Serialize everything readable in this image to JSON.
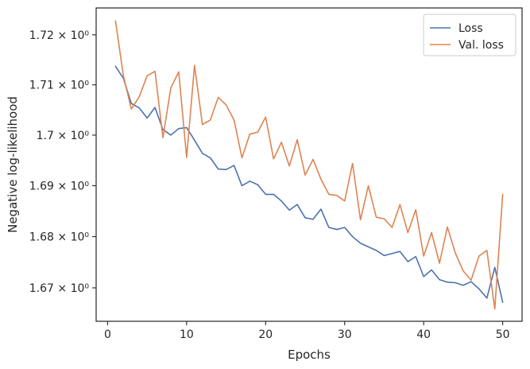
{
  "chart_data": {
    "type": "line",
    "title": "",
    "xlabel": "Epochs",
    "ylabel": "Negative log-likelihood",
    "x": [
      1,
      2,
      3,
      4,
      5,
      6,
      7,
      8,
      9,
      10,
      11,
      12,
      13,
      14,
      15,
      16,
      17,
      18,
      19,
      20,
      21,
      22,
      23,
      24,
      25,
      26,
      27,
      28,
      29,
      30,
      31,
      32,
      33,
      34,
      35,
      36,
      37,
      38,
      39,
      40,
      41,
      42,
      43,
      44,
      45,
      46,
      47,
      48,
      49,
      50
    ],
    "series": [
      {
        "name": "Loss",
        "color": "#4c72b0",
        "values": [
          1.7137,
          1.7113,
          1.7063,
          1.7054,
          1.7034,
          1.7055,
          1.7011,
          1.7,
          1.7013,
          1.7015,
          1.699,
          1.6964,
          1.6955,
          1.6933,
          1.6932,
          1.694,
          1.69,
          1.6909,
          1.6902,
          1.6883,
          1.6883,
          1.687,
          1.6852,
          1.6863,
          1.6837,
          1.6834,
          1.6854,
          1.6818,
          1.6814,
          1.6818,
          1.68,
          1.6787,
          1.678,
          1.6773,
          1.6763,
          1.6767,
          1.6771,
          1.6751,
          1.6761,
          1.6722,
          1.6735,
          1.6716,
          1.6711,
          1.671,
          1.6705,
          1.6712,
          1.6698,
          1.668,
          1.674,
          1.6672
        ]
      },
      {
        "name": "Val. loss",
        "color": "#dd8452",
        "values": [
          1.7228,
          1.7118,
          1.7052,
          1.7076,
          1.7118,
          1.7127,
          1.6995,
          1.7094,
          1.7126,
          1.6956,
          1.7139,
          1.7021,
          1.703,
          1.7075,
          1.706,
          1.703,
          1.6955,
          1.7002,
          1.7006,
          1.7036,
          1.6953,
          1.6986,
          1.6939,
          1.6991,
          1.6921,
          1.6952,
          1.6913,
          1.6883,
          1.6881,
          1.687,
          1.6944,
          1.6833,
          1.69,
          1.6838,
          1.6835,
          1.6818,
          1.6863,
          1.6808,
          1.6853,
          1.6762,
          1.6808,
          1.6748,
          1.6819,
          1.6768,
          1.6733,
          1.6715,
          1.6762,
          1.6773,
          1.6659,
          1.6883
        ]
      }
    ],
    "xticks": [
      0,
      10,
      20,
      30,
      40,
      50
    ],
    "yticks": [
      1.67,
      1.68,
      1.69,
      1.7,
      1.71,
      1.72
    ],
    "ytick_labels": [
      "1.67 × 10⁰",
      "1.68 × 10⁰",
      "1.69 × 10⁰",
      "1.7 × 10⁰",
      "1.71 × 10⁰",
      "1.72 × 10⁰"
    ],
    "xlim": [
      -1.45,
      52.45
    ],
    "ylim": [
      1.6635,
      1.7254
    ],
    "yscale": "log",
    "grid": false,
    "legend_position": "top-right"
  }
}
